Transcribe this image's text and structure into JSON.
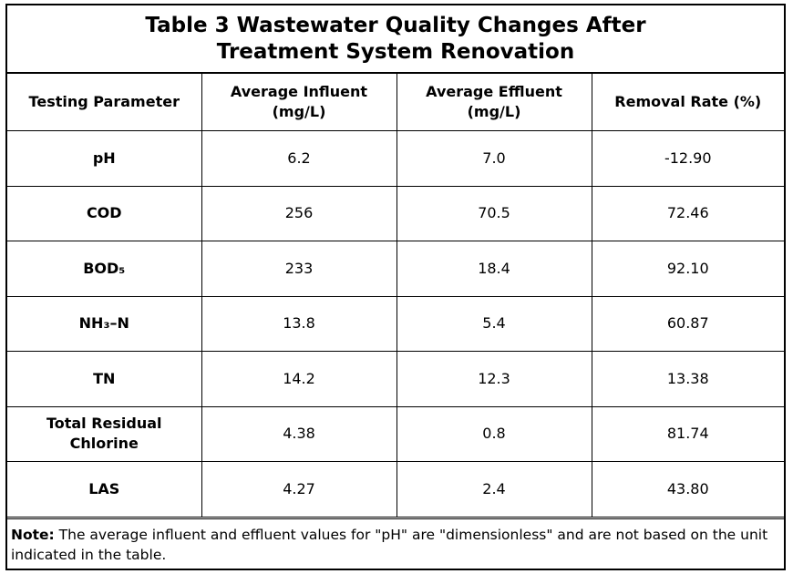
{
  "table": {
    "title_line1": "Table 3 Wastewater Quality Changes After",
    "title_line2": "Treatment System Renovation",
    "headers": [
      "Testing Parameter",
      "Average Influent (mg/L)",
      "Average Effluent (mg/L)",
      "Removal Rate (%)"
    ],
    "rows": [
      {
        "parameter": "pH",
        "influent": "6.2",
        "effluent": "7.0",
        "removal": "-12.90"
      },
      {
        "parameter": "COD",
        "influent": "256",
        "effluent": "70.5",
        "removal": "72.46"
      },
      {
        "parameter": "BOD₅",
        "influent": "233",
        "effluent": "18.4",
        "removal": "92.10"
      },
      {
        "parameter": "NH₃–N",
        "influent": "13.8",
        "effluent": "5.4",
        "removal": "60.87"
      },
      {
        "parameter": "TN",
        "influent": "14.2",
        "effluent": "12.3",
        "removal": "13.38"
      },
      {
        "parameter": "Total Residual Chlorine",
        "influent": "4.38",
        "effluent": "0.8",
        "removal": "81.74"
      },
      {
        "parameter": "LAS",
        "influent": "4.27",
        "effluent": "2.4",
        "removal": "43.80"
      }
    ]
  },
  "note": {
    "label": "Note:",
    "text": " The average influent and effluent values for \"pH\" are \"dimensionless\" and are not based on the unit indicated in the table."
  }
}
